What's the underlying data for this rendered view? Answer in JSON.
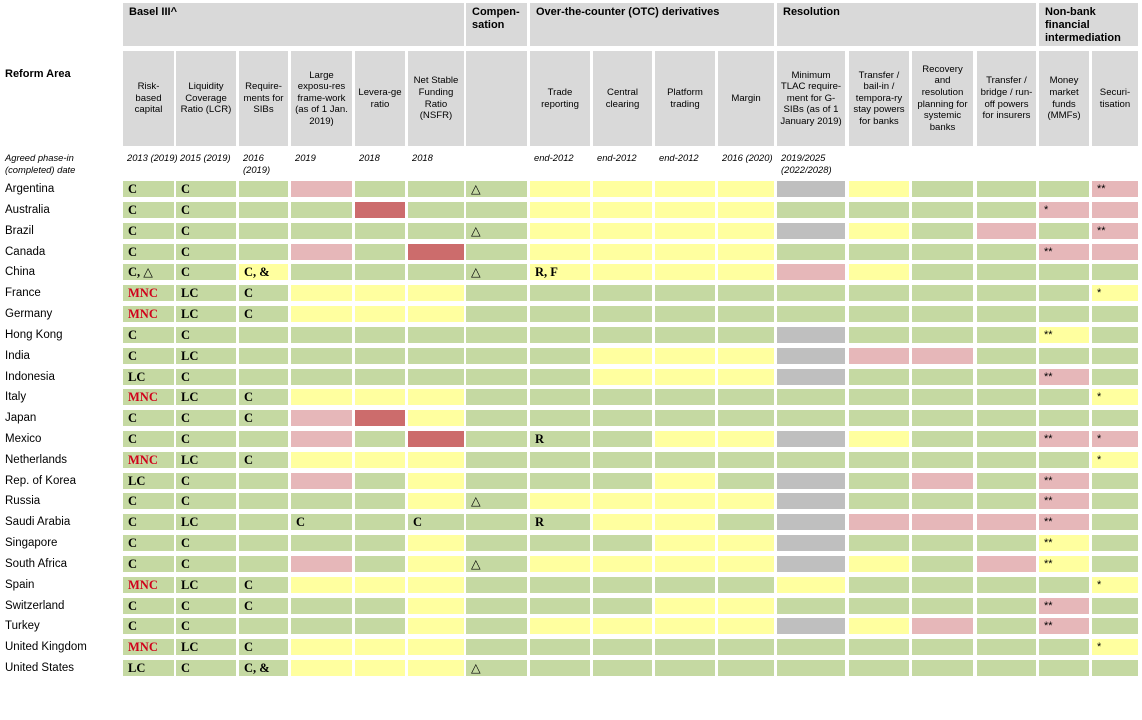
{
  "colors": {
    "green": "#c5d9a2",
    "yellow": "#ffff9f",
    "pink": "#e6b7b9",
    "red": "#cc6c6c",
    "gray": "#bfbfbf",
    "header_bg": "#d9d9d9",
    "mnc_text": "#d0021b"
  },
  "row_header": "Reform Area",
  "phase_label": "Agreed phase-in (completed) date",
  "groups": [
    "Basel III^",
    "Compen-sation",
    "Over-the-counter (OTC) derivatives",
    "Resolution",
    "Non-bank financial intermediation"
  ],
  "columns": [
    "Risk-based capital",
    "Liquidity Coverage Ratio (LCR)",
    "Require-ments for SIBs",
    "Large exposu-res frame-work (as of 1 Jan. 2019)",
    "Levera-ge ratio",
    "Net Stable Funding Ratio (NSFR)",
    "",
    "Trade reporting",
    "Central clearing",
    "Platform trading",
    "Margin",
    "Minimum TLAC require-ment for G-SIBs (as of 1 January 2019)",
    "Transfer / bail-in / tempora-ry stay powers for banks",
    "Recovery and resolution planning for systemic banks",
    "Transfer / bridge / run-off powers for insurers",
    "Money market funds (MMFs)",
    "Securi-tisation"
  ],
  "phase_dates": [
    "2013 (2019)",
    "2015 (2019)",
    "2016 (2019)",
    "2019",
    "2018",
    "2018",
    "",
    "end-2012",
    "end-2012",
    "end-2012",
    "2016 (2020)",
    "2019/2025 (2022/2028)",
    "",
    "",
    "",
    "",
    ""
  ],
  "rows": [
    {
      "country": "Argentina",
      "colors": [
        "g",
        "g",
        "g",
        "p",
        "g",
        "g",
        "g",
        "y",
        "y",
        "y",
        "y",
        "a",
        "y",
        "g",
        "g",
        "g",
        "p"
      ],
      "text": [
        "C",
        "C",
        "",
        "",
        "",
        "",
        "△",
        "",
        "",
        "",
        "",
        "",
        "",
        "",
        "",
        "",
        "**"
      ]
    },
    {
      "country": "Australia",
      "colors": [
        "g",
        "g",
        "g",
        "g",
        "r",
        "g",
        "g",
        "y",
        "y",
        "y",
        "y",
        "g",
        "g",
        "g",
        "g",
        "p",
        "p"
      ],
      "text": [
        "C",
        "C",
        "",
        "",
        "",
        "",
        "",
        "",
        "",
        "",
        "",
        "",
        "",
        "",
        "",
        "*",
        ""
      ]
    },
    {
      "country": "Brazil",
      "colors": [
        "g",
        "g",
        "g",
        "g",
        "g",
        "g",
        "g",
        "y",
        "y",
        "y",
        "y",
        "a",
        "y",
        "g",
        "p",
        "g",
        "p"
      ],
      "text": [
        "C",
        "C",
        "",
        "",
        "",
        "",
        "△",
        "",
        "",
        "",
        "",
        "",
        "",
        "",
        "",
        "",
        "**"
      ]
    },
    {
      "country": "Canada",
      "colors": [
        "g",
        "g",
        "g",
        "p",
        "g",
        "r",
        "g",
        "y",
        "y",
        "y",
        "y",
        "g",
        "g",
        "g",
        "g",
        "p",
        "p"
      ],
      "text": [
        "C",
        "C",
        "",
        "",
        "",
        "",
        "",
        "",
        "",
        "",
        "",
        "",
        "",
        "",
        "",
        "**",
        ""
      ]
    },
    {
      "country": "China",
      "colors": [
        "g",
        "g",
        "y",
        "g",
        "g",
        "g",
        "g",
        "y",
        "y",
        "y",
        "y",
        "p",
        "y",
        "g",
        "g",
        "g",
        "g"
      ],
      "text": [
        "C, △",
        "C",
        "C, &",
        "",
        "",
        "",
        "△",
        "R, F",
        "",
        "",
        "",
        "",
        "",
        "",
        "",
        "",
        ""
      ]
    },
    {
      "country": "France",
      "colors": [
        "g",
        "g",
        "g",
        "y",
        "y",
        "y",
        "g",
        "g",
        "g",
        "g",
        "g",
        "g",
        "g",
        "g",
        "g",
        "g",
        "y"
      ],
      "text": [
        "MNC",
        "LC",
        "C",
        "",
        "",
        "",
        "",
        "",
        "",
        "",
        "",
        "",
        "",
        "",
        "",
        "",
        "*"
      ]
    },
    {
      "country": "Germany",
      "colors": [
        "g",
        "g",
        "g",
        "y",
        "y",
        "y",
        "g",
        "g",
        "g",
        "g",
        "g",
        "g",
        "g",
        "g",
        "g",
        "g",
        "g"
      ],
      "text": [
        "MNC",
        "LC",
        "C",
        "",
        "",
        "",
        "",
        "",
        "",
        "",
        "",
        "",
        "",
        "",
        "",
        "",
        ""
      ]
    },
    {
      "country": "Hong Kong",
      "colors": [
        "g",
        "g",
        "g",
        "g",
        "g",
        "g",
        "g",
        "g",
        "g",
        "g",
        "g",
        "a",
        "g",
        "g",
        "g",
        "y",
        "g"
      ],
      "text": [
        "C",
        "C",
        "",
        "",
        "",
        "",
        "",
        "",
        "",
        "",
        "",
        "",
        "",
        "",
        "",
        "**",
        ""
      ]
    },
    {
      "country": "India",
      "colors": [
        "g",
        "g",
        "g",
        "g",
        "g",
        "g",
        "g",
        "g",
        "y",
        "y",
        "y",
        "a",
        "p",
        "p",
        "g",
        "g",
        "g"
      ],
      "text": [
        "C",
        "LC",
        "",
        "",
        "",
        "",
        "",
        "",
        "",
        "",
        "",
        "",
        "",
        "",
        "",
        "",
        ""
      ]
    },
    {
      "country": "Indonesia",
      "colors": [
        "g",
        "g",
        "g",
        "g",
        "g",
        "g",
        "g",
        "g",
        "y",
        "y",
        "y",
        "a",
        "g",
        "g",
        "g",
        "p",
        "g"
      ],
      "text": [
        "LC",
        "C",
        "",
        "",
        "",
        "",
        "",
        "",
        "",
        "",
        "",
        "",
        "",
        "",
        "",
        "**",
        ""
      ]
    },
    {
      "country": "Italy",
      "colors": [
        "g",
        "g",
        "g",
        "y",
        "y",
        "y",
        "g",
        "g",
        "g",
        "g",
        "g",
        "g",
        "g",
        "g",
        "g",
        "g",
        "y"
      ],
      "text": [
        "MNC",
        "LC",
        "C",
        "",
        "",
        "",
        "",
        "",
        "",
        "",
        "",
        "",
        "",
        "",
        "",
        "",
        "*"
      ]
    },
    {
      "country": "Japan",
      "colors": [
        "g",
        "g",
        "g",
        "p",
        "r",
        "y",
        "g",
        "g",
        "g",
        "g",
        "g",
        "g",
        "g",
        "g",
        "g",
        "g",
        "g"
      ],
      "text": [
        "C",
        "C",
        "C",
        "",
        "",
        "",
        "",
        "",
        "",
        "",
        "",
        "",
        "",
        "",
        "",
        "",
        ""
      ]
    },
    {
      "country": "Mexico",
      "colors": [
        "g",
        "g",
        "g",
        "p",
        "g",
        "r",
        "g",
        "g",
        "g",
        "y",
        "y",
        "a",
        "y",
        "g",
        "g",
        "p",
        "p"
      ],
      "text": [
        "C",
        "C",
        "",
        "",
        "",
        "",
        "",
        "R",
        "",
        "",
        "",
        "",
        "",
        "",
        "",
        "**",
        "*"
      ]
    },
    {
      "country": "Netherlands",
      "colors": [
        "g",
        "g",
        "g",
        "y",
        "y",
        "y",
        "g",
        "g",
        "g",
        "g",
        "g",
        "g",
        "g",
        "g",
        "g",
        "g",
        "y"
      ],
      "text": [
        "MNC",
        "LC",
        "C",
        "",
        "",
        "",
        "",
        "",
        "",
        "",
        "",
        "",
        "",
        "",
        "",
        "",
        "*"
      ]
    },
    {
      "country": "Rep. of Korea",
      "colors": [
        "g",
        "g",
        "g",
        "p",
        "g",
        "y",
        "g",
        "g",
        "g",
        "y",
        "g",
        "a",
        "g",
        "p",
        "g",
        "p",
        "g"
      ],
      "text": [
        "LC",
        "C",
        "",
        "",
        "",
        "",
        "",
        "",
        "",
        "",
        "",
        "",
        "",
        "",
        "",
        "**",
        ""
      ]
    },
    {
      "country": "Russia",
      "colors": [
        "g",
        "g",
        "g",
        "g",
        "g",
        "y",
        "g",
        "y",
        "y",
        "y",
        "y",
        "a",
        "g",
        "g",
        "g",
        "p",
        "g"
      ],
      "text": [
        "C",
        "C",
        "",
        "",
        "",
        "",
        "△",
        "",
        "",
        "",
        "",
        "",
        "",
        "",
        "",
        "**",
        ""
      ]
    },
    {
      "country": "Saudi Arabia",
      "colors": [
        "g",
        "g",
        "g",
        "g",
        "g",
        "g",
        "g",
        "g",
        "y",
        "y",
        "g",
        "a",
        "p",
        "p",
        "p",
        "p",
        "g"
      ],
      "text": [
        "C",
        "LC",
        "",
        "C",
        "",
        "C",
        "",
        "R",
        "",
        "",
        "",
        "",
        "",
        "",
        "",
        "**",
        ""
      ]
    },
    {
      "country": "Singapore",
      "colors": [
        "g",
        "g",
        "g",
        "g",
        "g",
        "y",
        "g",
        "g",
        "g",
        "y",
        "y",
        "a",
        "g",
        "g",
        "g",
        "y",
        "g"
      ],
      "text": [
        "C",
        "C",
        "",
        "",
        "",
        "",
        "",
        "",
        "",
        "",
        "",
        "",
        "",
        "",
        "",
        "**",
        ""
      ]
    },
    {
      "country": "South Africa",
      "colors": [
        "g",
        "g",
        "g",
        "p",
        "g",
        "y",
        "g",
        "y",
        "y",
        "y",
        "y",
        "a",
        "y",
        "g",
        "p",
        "y",
        "g"
      ],
      "text": [
        "C",
        "C",
        "",
        "",
        "",
        "",
        "△",
        "",
        "",
        "",
        "",
        "",
        "",
        "",
        "",
        "**",
        ""
      ]
    },
    {
      "country": "Spain",
      "colors": [
        "g",
        "g",
        "g",
        "y",
        "y",
        "y",
        "g",
        "g",
        "g",
        "g",
        "g",
        "y",
        "g",
        "g",
        "g",
        "g",
        "y"
      ],
      "text": [
        "MNC",
        "LC",
        "C",
        "",
        "",
        "",
        "",
        "",
        "",
        "",
        "",
        "",
        "",
        "",
        "",
        "",
        "*"
      ]
    },
    {
      "country": "Switzerland",
      "colors": [
        "g",
        "g",
        "g",
        "g",
        "g",
        "y",
        "g",
        "g",
        "g",
        "y",
        "y",
        "g",
        "g",
        "g",
        "g",
        "p",
        "g"
      ],
      "text": [
        "C",
        "C",
        "C",
        "",
        "",
        "",
        "",
        "",
        "",
        "",
        "",
        "",
        "",
        "",
        "",
        "**",
        ""
      ]
    },
    {
      "country": "Turkey",
      "colors": [
        "g",
        "g",
        "g",
        "g",
        "g",
        "y",
        "g",
        "y",
        "y",
        "y",
        "y",
        "a",
        "y",
        "p",
        "g",
        "p",
        "g"
      ],
      "text": [
        "C",
        "C",
        "",
        "",
        "",
        "",
        "",
        "",
        "",
        "",
        "",
        "",
        "",
        "",
        "",
        "**",
        ""
      ]
    },
    {
      "country": "United Kingdom",
      "colors": [
        "g",
        "g",
        "g",
        "y",
        "y",
        "y",
        "g",
        "g",
        "g",
        "g",
        "g",
        "g",
        "g",
        "g",
        "g",
        "g",
        "y"
      ],
      "text": [
        "MNC",
        "LC",
        "C",
        "",
        "",
        "",
        "",
        "",
        "",
        "",
        "",
        "",
        "",
        "",
        "",
        "",
        "*"
      ]
    },
    {
      "country": "United States",
      "colors": [
        "g",
        "g",
        "g",
        "y",
        "y",
        "y",
        "g",
        "g",
        "g",
        "g",
        "g",
        "g",
        "g",
        "g",
        "g",
        "g",
        "g"
      ],
      "text": [
        "LC",
        "C",
        "C, &",
        "",
        "",
        "",
        "△",
        "",
        "",
        "",
        "",
        "",
        "",
        "",
        "",
        "",
        ""
      ]
    }
  ]
}
